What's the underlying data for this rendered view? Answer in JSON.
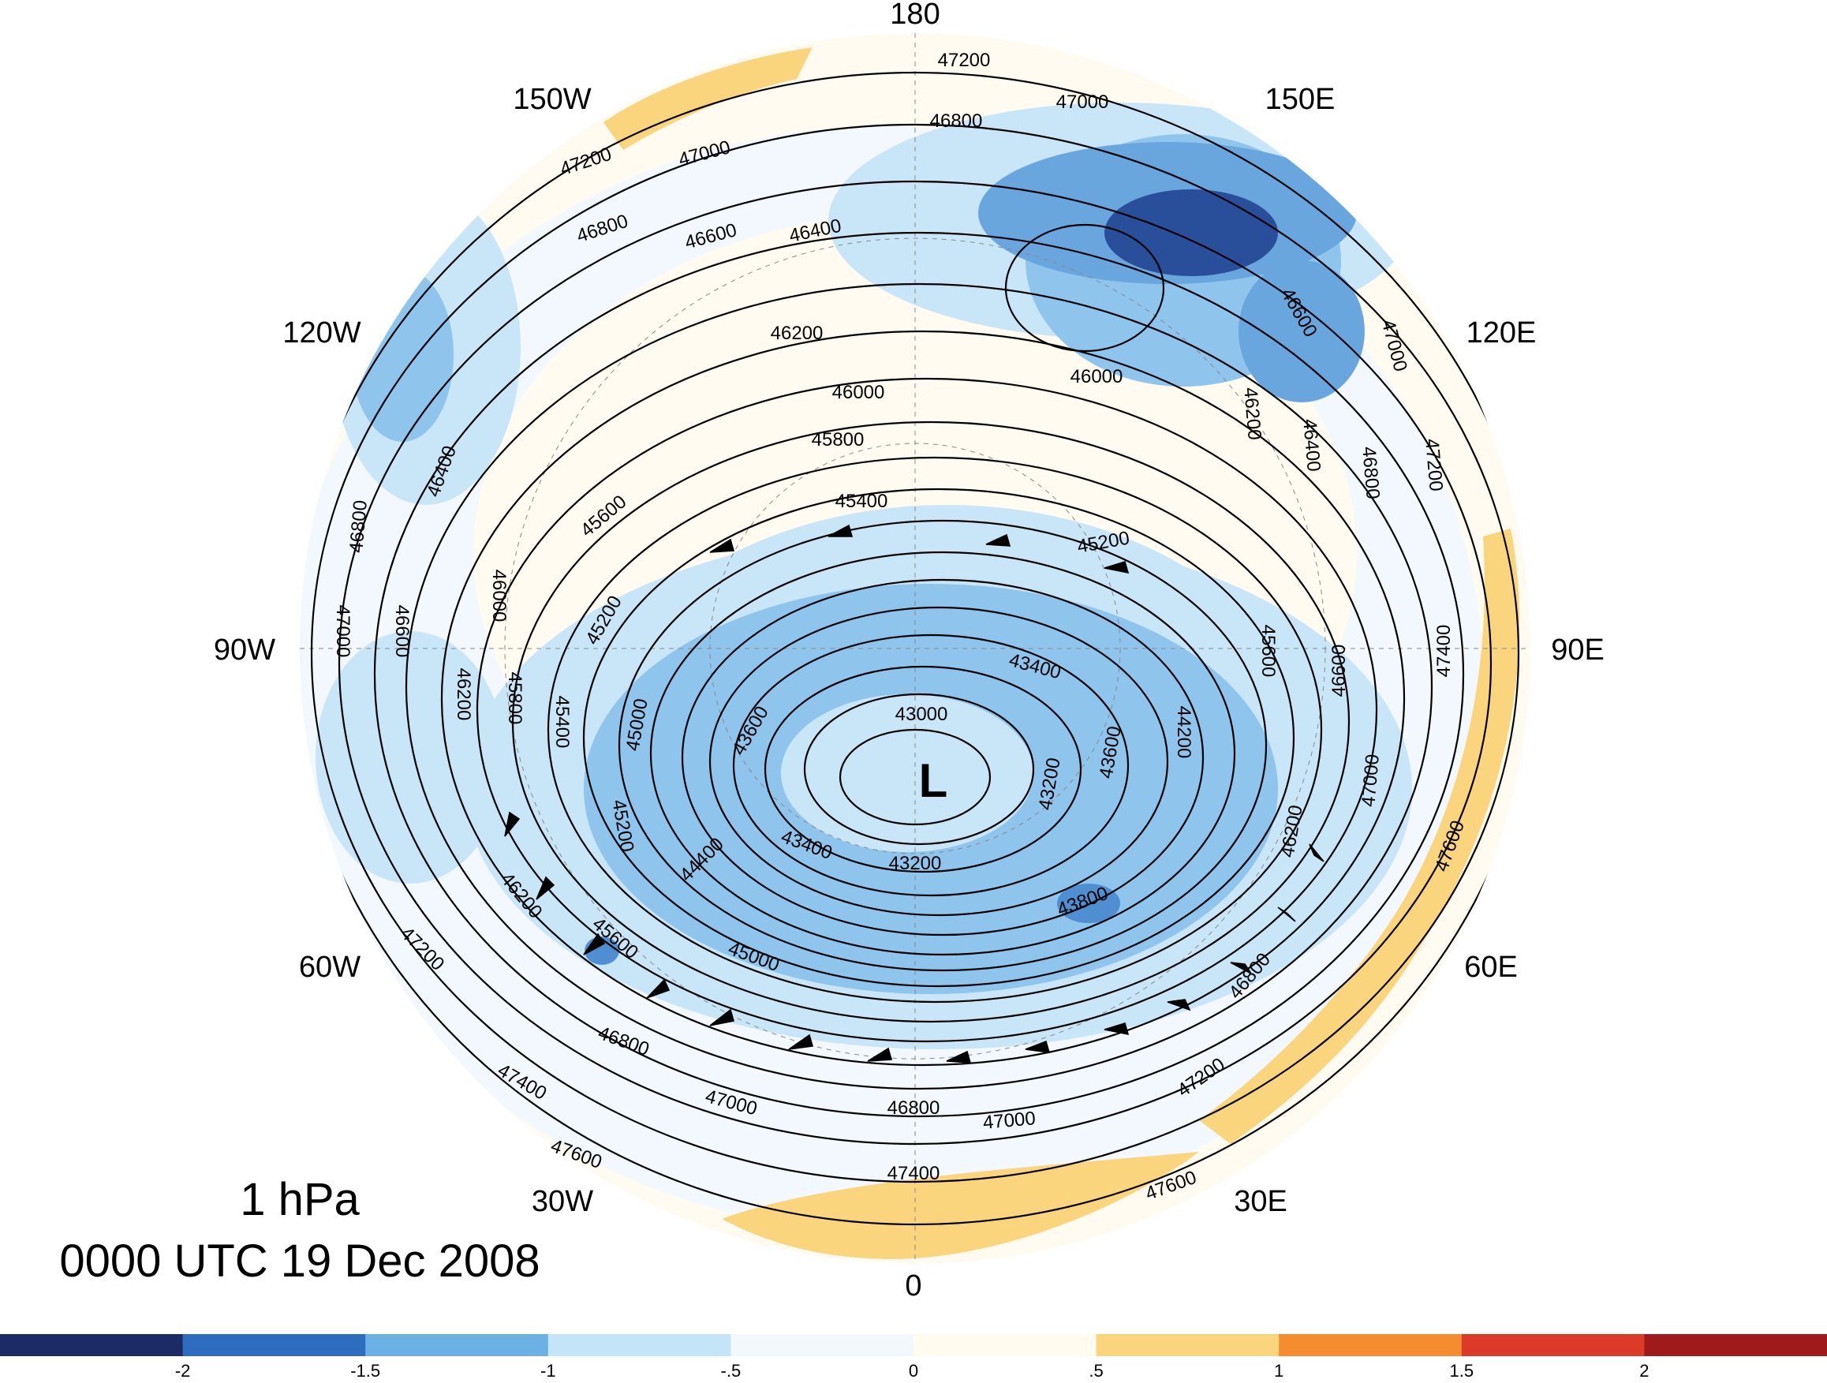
{
  "title": {
    "level": "1 hPa",
    "valid_time": "0000 UTC 19 Dec 2008"
  },
  "map": {
    "projection": "north-polar-stereographic",
    "longitude_labels": [
      "180",
      "150E",
      "120E",
      "90E",
      "60E",
      "30E",
      "0",
      "30W",
      "60W",
      "90W",
      "120W",
      "150W"
    ],
    "low_center_symbol": "L",
    "contour_interval": 200,
    "contour_labels": [
      "47200",
      "47000",
      "46800",
      "47200",
      "47000",
      "46800",
      "46600",
      "46400",
      "46200",
      "46000",
      "46000",
      "45800",
      "45600",
      "45400",
      "45200",
      "46400",
      "46800",
      "47000",
      "46600",
      "46200",
      "46000",
      "45800",
      "45400",
      "45200",
      "45000",
      "43600",
      "43000",
      "43400",
      "44200",
      "43600",
      "43200",
      "43400",
      "43200",
      "43800",
      "44400",
      "45200",
      "45600",
      "45000",
      "46200",
      "47200",
      "46800",
      "47400",
      "47600",
      "47000",
      "46800",
      "47000",
      "47400",
      "47600",
      "46600",
      "47000",
      "46200",
      "46400",
      "46800",
      "47200",
      "45600",
      "46600",
      "47400",
      "47000",
      "46200",
      "47600",
      "46800",
      "47200"
    ],
    "shading_colors": {
      "strong_negative": "#1a2f6b",
      "moderate_negative": "#4f8fd1",
      "light_negative": "#8fc4ec",
      "pale_negative": "#c8e6f8",
      "faint_negative": "#f2f8fd",
      "faint_positive": "#fffbf0",
      "positive": "#fbd47e"
    }
  },
  "colorbar": {
    "colors": [
      "#1c2a66",
      "#2e6cbf",
      "#6bb1e3",
      "#c4e5f7",
      "#f3f8fd",
      "#fffbee",
      "#fbd47e",
      "#f58c2f",
      "#dd3a2a",
      "#9e1a1b"
    ],
    "tick_labels": [
      "-2",
      "-1.5",
      "-1",
      "-.5",
      "0",
      ".5",
      "1",
      "1.5",
      "2"
    ]
  }
}
